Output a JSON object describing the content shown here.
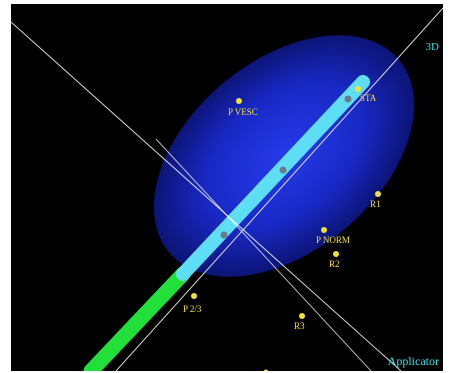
{
  "view": {
    "view_label": "3D",
    "mode_label": "Applicator"
  },
  "colors": {
    "background": "#000000",
    "volume": "#1a2cd6",
    "applicator": "#38e0f0",
    "catheter": "#22e03a",
    "point": "#f2e233",
    "label": "#f2e233",
    "corner_text": "#3fe0e6",
    "axis_line": "#ffffff"
  },
  "points": [
    {
      "name": "P VESC"
    },
    {
      "name": "STA"
    },
    {
      "name": "R1"
    },
    {
      "name": "P NORM"
    },
    {
      "name": "R2"
    },
    {
      "name": "P 2/3"
    },
    {
      "name": "R3"
    }
  ]
}
